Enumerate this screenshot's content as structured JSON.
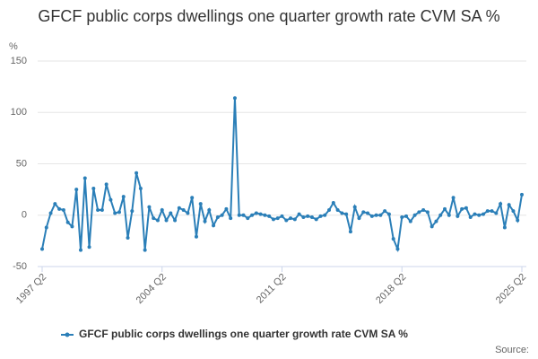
{
  "chart_data": {
    "type": "line",
    "title": "GFCF public corps dwellings one quarter growth rate CVM SA %",
    "y_unit_label": "%",
    "source_label": "Source:",
    "categories": [
      "1997 Q2",
      null,
      null,
      null,
      null,
      null,
      null,
      null,
      null,
      null,
      null,
      null,
      null,
      null,
      null,
      null,
      null,
      null,
      null,
      null,
      null,
      null,
      null,
      null,
      null,
      null,
      null,
      null,
      "2004 Q2",
      null,
      null,
      null,
      null,
      null,
      null,
      null,
      null,
      null,
      null,
      null,
      null,
      null,
      null,
      null,
      null,
      null,
      null,
      null,
      null,
      null,
      null,
      null,
      null,
      null,
      null,
      null,
      "2011 Q2",
      null,
      null,
      null,
      null,
      null,
      null,
      null,
      null,
      null,
      null,
      null,
      null,
      null,
      null,
      null,
      null,
      null,
      null,
      null,
      null,
      null,
      null,
      null,
      null,
      null,
      null,
      null,
      "2018 Q2",
      null,
      null,
      null,
      null,
      null,
      null,
      null,
      null,
      null,
      null,
      null,
      null,
      null,
      null,
      null,
      null,
      null,
      null,
      null,
      null,
      null,
      null,
      null,
      null,
      null,
      null,
      null,
      "2025 Q2"
    ],
    "series": [
      {
        "name": "GFCF public corps dwellings one quarter growth rate CVM SA %",
        "color": "#2b7fb8",
        "values": [
          -33,
          -12,
          2,
          11,
          6,
          5,
          -7,
          -11,
          25,
          -34,
          36,
          -31,
          26,
          5,
          5,
          30,
          15,
          2,
          3,
          18,
          -22,
          4,
          41,
          26,
          -34,
          8,
          -3,
          -5,
          5,
          -5,
          2,
          -5,
          7,
          5,
          2,
          17,
          -21,
          11,
          -6,
          5,
          -10,
          -2,
          0,
          6,
          -3,
          114,
          0,
          0,
          -3,
          0,
          2,
          1,
          0,
          -1,
          -4,
          -3,
          -1,
          -5,
          -3,
          -4,
          1,
          -2,
          -1,
          -2,
          -4,
          -1,
          0,
          5,
          12,
          5,
          2,
          1,
          -16,
          8,
          -3,
          3,
          2,
          -1,
          0,
          0,
          4,
          1,
          -23,
          -33,
          -2,
          -1,
          -6,
          0,
          3,
          5,
          3,
          -11,
          -6,
          0,
          6,
          0,
          17,
          -1,
          6,
          7,
          -2,
          1,
          0,
          1,
          4,
          4,
          2,
          11,
          -12,
          10,
          4,
          -5,
          20
        ]
      }
    ],
    "ylim": [
      -50,
      150
    ],
    "yticks": [
      -50,
      0,
      50,
      100,
      150
    ],
    "grid": true,
    "legend": "bottom"
  }
}
